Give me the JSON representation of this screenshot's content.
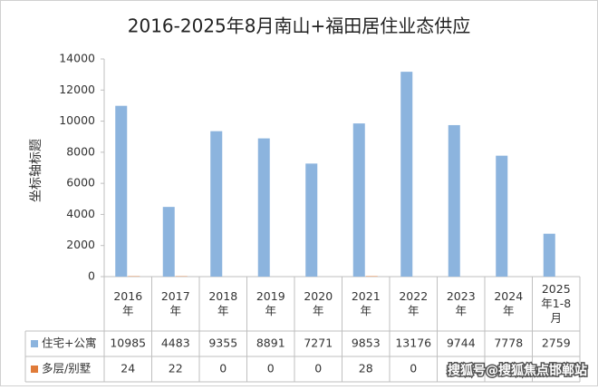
{
  "chart_data": {
    "type": "bar",
    "title": "2016-2025年8月南山+福田居住业态供应",
    "y_label": "坐标轴标题",
    "categories": [
      "2016年",
      "2017年",
      "2018年",
      "2019年",
      "2020年",
      "2021年",
      "2022年",
      "2023年",
      "2024年",
      "2025年1-8月"
    ],
    "series": [
      {
        "name": "住宅+公寓",
        "color": "#8cb4de",
        "values": [
          10985,
          4483,
          9355,
          8891,
          7271,
          9853,
          13176,
          9744,
          7778,
          2759
        ]
      },
      {
        "name": "多层/别墅",
        "color": "#e07b39",
        "values": [
          24,
          22,
          0,
          0,
          0,
          28,
          0,
          null,
          null,
          null
        ]
      }
    ],
    "ylim": [
      0,
      14000
    ],
    "yticks": [
      0,
      2000,
      4000,
      6000,
      8000,
      10000,
      12000,
      14000
    ],
    "grid": false,
    "watermark": "搜狐号@搜狐焦点邯郸站"
  }
}
